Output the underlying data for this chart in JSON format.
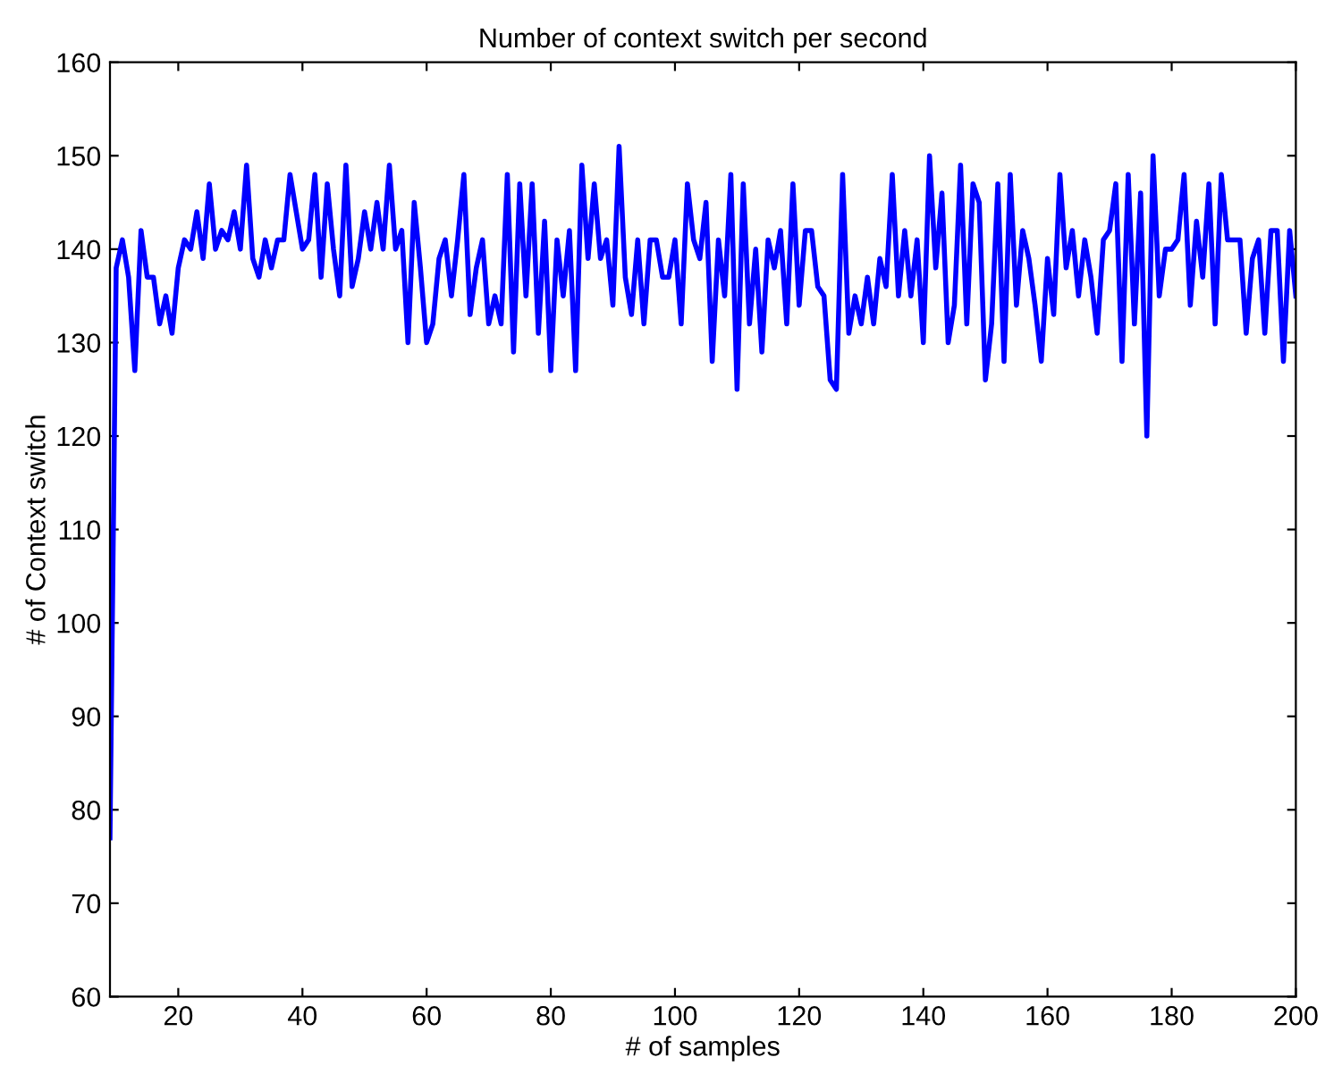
{
  "chart_data": {
    "type": "line",
    "title": "Number of context switch per second",
    "xlabel": "# of samples",
    "ylabel": "# of Context switch",
    "x": [
      9,
      10,
      11,
      12,
      13,
      14,
      15,
      16,
      17,
      18,
      19,
      20,
      21,
      22,
      23,
      24,
      25,
      26,
      27,
      28,
      29,
      30,
      31,
      32,
      33,
      34,
      35,
      36,
      37,
      38,
      39,
      40,
      41,
      42,
      43,
      44,
      45,
      46,
      47,
      48,
      49,
      50,
      51,
      52,
      53,
      54,
      55,
      56,
      57,
      58,
      59,
      60,
      61,
      62,
      63,
      64,
      65,
      66,
      67,
      68,
      69,
      70,
      71,
      72,
      73,
      74,
      75,
      76,
      77,
      78,
      79,
      80,
      81,
      82,
      83,
      84,
      85,
      86,
      87,
      88,
      89,
      90,
      91,
      92,
      93,
      94,
      95,
      96,
      97,
      98,
      99,
      100,
      101,
      102,
      103,
      104,
      105,
      106,
      107,
      108,
      109,
      110,
      111,
      112,
      113,
      114,
      115,
      116,
      117,
      118,
      119,
      120,
      121,
      122,
      123,
      124,
      125,
      126,
      127,
      128,
      129,
      130,
      131,
      132,
      133,
      134,
      135,
      136,
      137,
      138,
      139,
      140,
      141,
      142,
      143,
      144,
      145,
      146,
      147,
      148,
      149,
      150,
      151,
      152,
      153,
      154,
      155,
      156,
      157,
      158,
      159,
      160,
      161,
      162,
      163,
      164,
      165,
      166,
      167,
      168,
      169,
      170,
      171,
      172,
      173,
      174,
      175,
      176,
      177,
      178,
      179,
      180,
      181,
      182,
      183,
      184,
      185,
      186,
      187,
      188,
      189,
      190,
      191,
      192,
      193,
      194,
      195,
      196,
      197,
      198,
      199,
      200
    ],
    "series": [
      {
        "color": "#0000ff",
        "values": [
          77,
          138,
          141,
          137,
          127,
          142,
          137,
          137,
          132,
          135,
          131,
          138,
          141,
          140,
          144,
          139,
          147,
          140,
          142,
          141,
          144,
          140,
          149,
          139,
          137,
          141,
          138,
          141,
          141,
          148,
          144,
          140,
          141,
          148,
          137,
          147,
          140,
          135,
          149,
          136,
          139,
          144,
          140,
          145,
          140,
          149,
          140,
          142,
          130,
          145,
          138,
          130,
          132,
          139,
          141,
          135,
          141,
          148,
          133,
          138,
          141,
          132,
          135,
          132,
          148,
          129,
          147,
          135,
          147,
          131,
          143,
          127,
          141,
          135,
          142,
          127,
          149,
          139,
          147,
          139,
          141,
          134,
          151,
          137,
          133,
          141,
          132,
          141,
          141,
          137,
          137,
          141,
          132,
          147,
          141,
          139,
          145,
          128,
          141,
          135,
          148,
          125,
          147,
          132,
          140,
          129,
          141,
          138,
          142,
          132,
          147,
          134,
          142,
          142,
          136,
          135,
          126,
          125,
          148,
          131,
          135,
          132,
          137,
          132,
          139,
          136,
          148,
          135,
          142,
          135,
          141,
          130,
          150,
          138,
          146,
          130,
          134,
          149,
          132,
          147,
          145,
          126,
          132,
          147,
          128,
          148,
          134,
          142,
          139,
          134,
          128,
          139,
          133,
          148,
          138,
          142,
          135,
          141,
          137,
          131,
          141,
          142,
          147,
          128,
          148,
          132,
          146,
          120,
          150,
          135,
          140,
          140,
          141,
          148,
          134,
          143,
          137,
          147,
          132,
          148,
          141,
          141,
          141,
          131,
          139,
          141,
          131,
          142,
          142,
          128,
          142,
          135
        ]
      }
    ],
    "xlim": [
      9,
      200
    ],
    "ylim": [
      60,
      160
    ],
    "xticks": [
      20,
      40,
      60,
      80,
      100,
      120,
      140,
      160,
      180,
      200
    ],
    "yticks": [
      60,
      70,
      80,
      90,
      100,
      110,
      120,
      130,
      140,
      150,
      160
    ],
    "grid": false,
    "legend": false,
    "marker": "none",
    "line_style": "solid"
  }
}
